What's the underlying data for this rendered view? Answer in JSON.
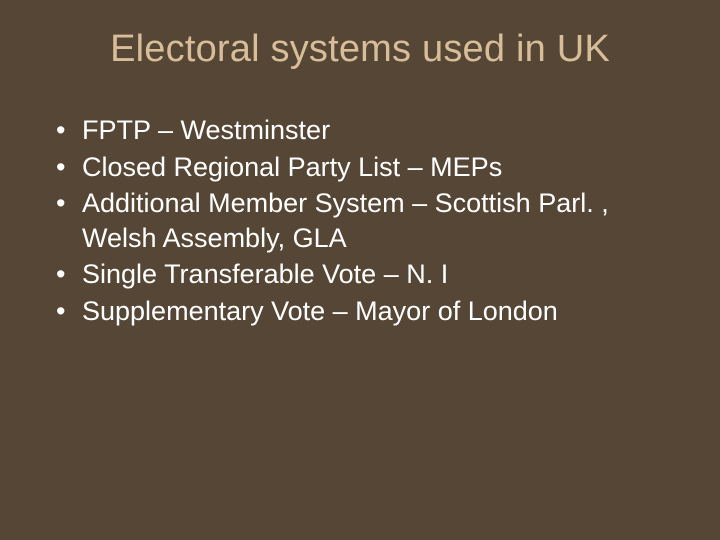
{
  "slide": {
    "background_color": "#554635",
    "title": {
      "text": "Electoral systems used in UK",
      "color": "#d8bd99",
      "font_size_pt": 29,
      "font_weight": 400,
      "align": "center"
    },
    "bullets": {
      "color": "#ffffff",
      "font_size_pt": 20,
      "marker": "•",
      "items": [
        "FPTP – Westminster",
        "Closed Regional Party List – MEPs",
        "Additional Member System – Scottish Parl. , Welsh Assembly, GLA",
        "Single Transferable Vote – N. I",
        "Supplementary Vote – Mayor of London"
      ]
    }
  }
}
